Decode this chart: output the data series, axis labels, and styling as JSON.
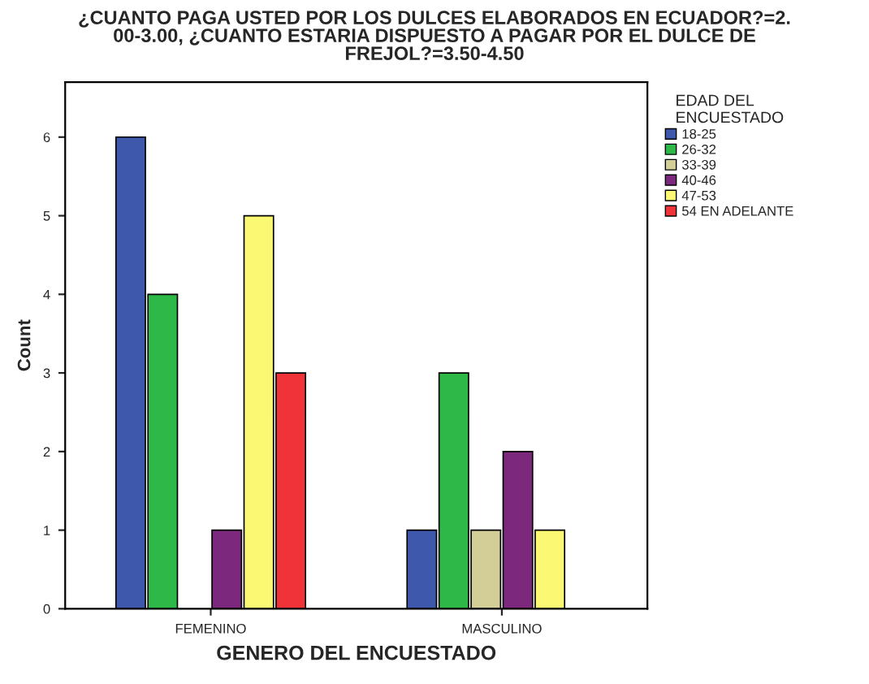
{
  "chart_data": {
    "type": "bar",
    "title": "¿CUANTO PAGA USTED POR LOS DULCES ELABORADOS EN ECUADOR?=2.\n00-3.00, ¿CUANTO ESTARIA DISPUESTO A PAGAR POR EL DULCE DE\nFREJOL?=3.50-4.50",
    "xlabel": "GENERO DEL ENCUESTADO",
    "ylabel": "Count",
    "legend_title": "EDAD DEL\nENCUESTADO",
    "categories": [
      "FEMENINO",
      "MASCULINO"
    ],
    "series": [
      {
        "name": "18-25",
        "color": "#3e58ac",
        "values": [
          6,
          1
        ]
      },
      {
        "name": "26-32",
        "color": "#2eb848",
        "values": [
          4,
          3
        ]
      },
      {
        "name": "33-39",
        "color": "#d3ce97",
        "values": [
          null,
          1
        ]
      },
      {
        "name": "40-46",
        "color": "#7c287d",
        "values": [
          1,
          2
        ]
      },
      {
        "name": "47-53",
        "color": "#fbf873",
        "values": [
          5,
          1
        ]
      },
      {
        "name": "54 EN ADELANTE",
        "color": "#ef3338",
        "values": [
          3,
          null
        ]
      }
    ],
    "ylim": [
      0,
      6.7
    ],
    "yticks": [
      0,
      1,
      2,
      3,
      4,
      5,
      6
    ],
    "grid": false,
    "legend": "right"
  }
}
